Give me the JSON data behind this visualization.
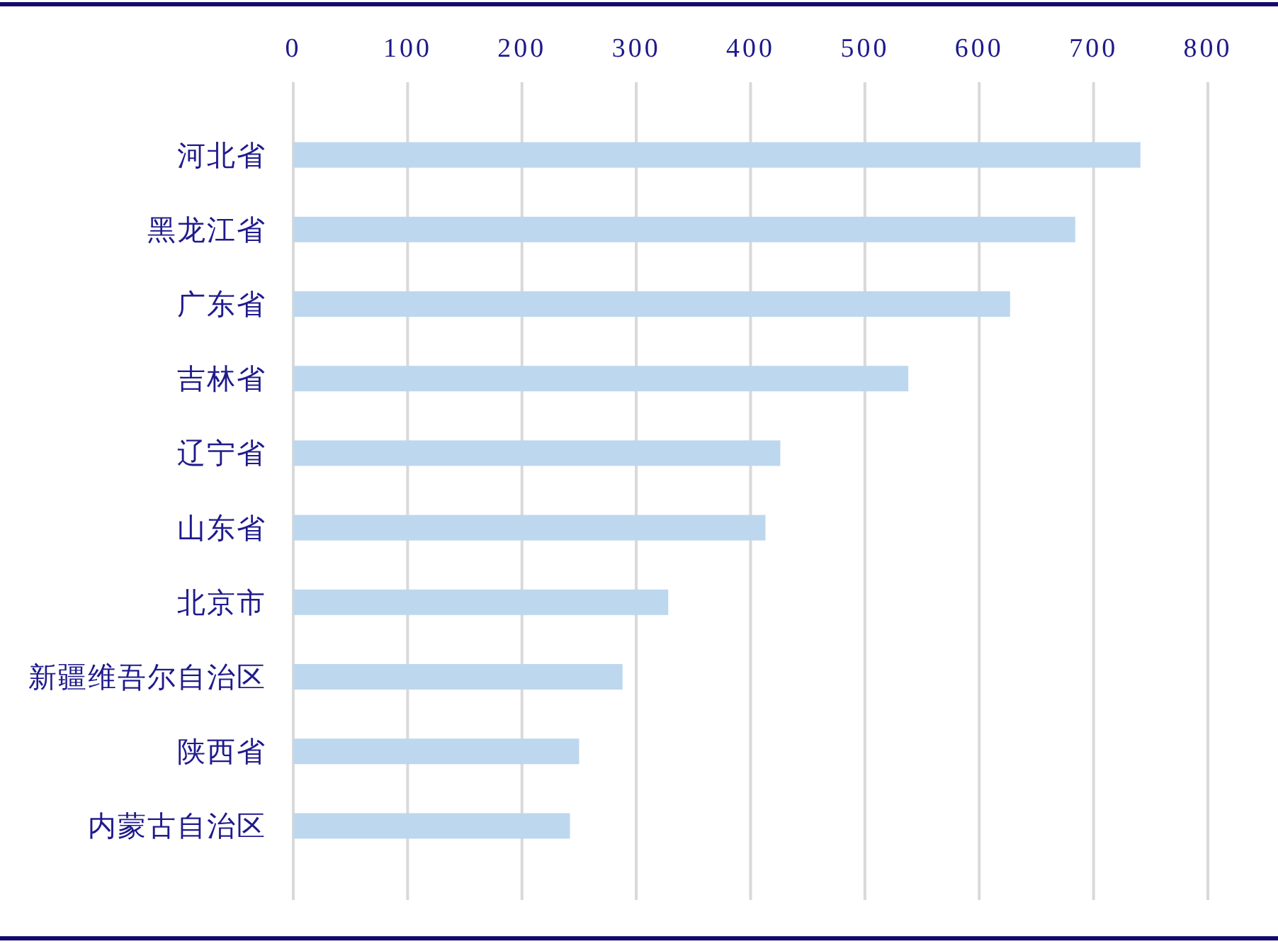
{
  "chart_data": {
    "type": "bar",
    "orientation": "horizontal",
    "categories": [
      "河北省",
      "黑龙江省",
      "广东省",
      "吉林省",
      "辽宁省",
      "山东省",
      "北京市",
      "新疆维吾尔自治区",
      "陕西省",
      "内蒙古自治区"
    ],
    "values": [
      741,
      684,
      627,
      538,
      426,
      413,
      328,
      288,
      250,
      242
    ],
    "color": "#bdd7ee",
    "xlim": [
      0,
      800
    ],
    "xticks": [
      0,
      100,
      200,
      300,
      400,
      500,
      600,
      700,
      800
    ],
    "grid": "x"
  }
}
